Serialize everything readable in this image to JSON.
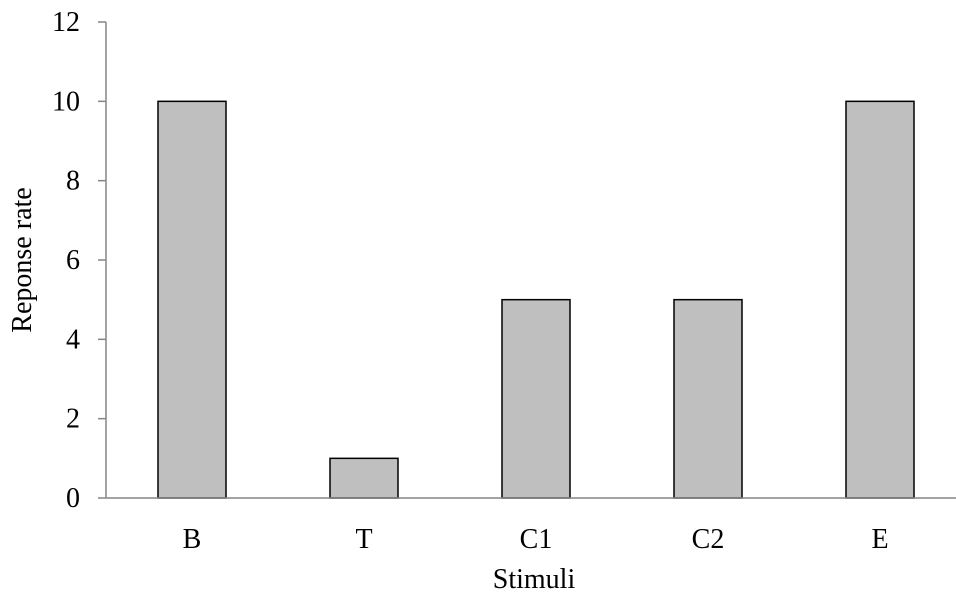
{
  "chart_data": {
    "type": "bar",
    "categories": [
      "B",
      "T",
      "C1",
      "C2",
      "E"
    ],
    "values": [
      10,
      1,
      5,
      5,
      10
    ],
    "title": "",
    "xlabel": "Stimuli",
    "ylabel": "Reponse rate",
    "ylim": [
      0,
      12
    ],
    "yticks": [
      0,
      2,
      4,
      6,
      8,
      10,
      12
    ],
    "grid": false,
    "legend": "none",
    "colors": {
      "bar_fill": "#bfbfbf",
      "bar_stroke": "#000000",
      "axis": "#868686"
    }
  }
}
